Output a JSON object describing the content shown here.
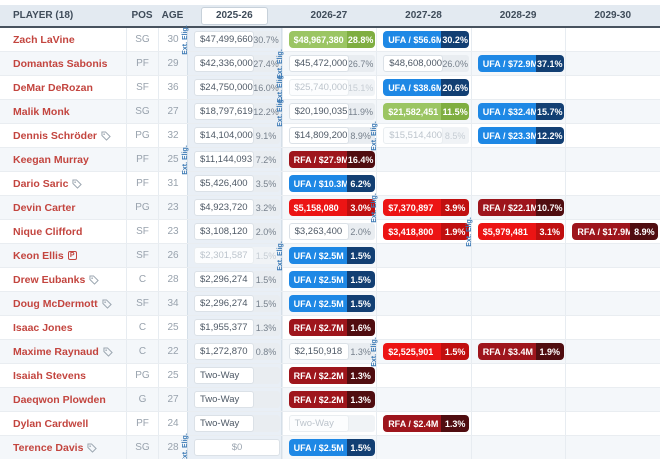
{
  "table": {
    "columns": [
      "PLAYER (18)",
      "POS",
      "AGE",
      "2025-26",
      "2026-27",
      "2027-28",
      "2028-29",
      "2029-30"
    ],
    "ext_elig_label": "Ext. Elig.",
    "rows": [
      {
        "player": "Zach LaVine",
        "pos": "SG",
        "age": "30",
        "icon": null,
        "cells": [
          {
            "type": "plain",
            "label": "$47,499,660",
            "pct": "30.7%",
            "ext": true
          },
          {
            "type": "green",
            "label": "$48,967,380",
            "pct": "28.8%"
          },
          {
            "type": "blue",
            "label": "UFA / $56.6M",
            "pct": "30.2%"
          },
          null,
          null
        ]
      },
      {
        "player": "Domantas Sabonis",
        "pos": "PF",
        "age": "29",
        "icon": null,
        "cells": [
          {
            "type": "plain",
            "label": "$42,336,000",
            "pct": "27.4%"
          },
          {
            "type": "plain",
            "label": "$45,472,000",
            "pct": "26.7%",
            "ext": true
          },
          {
            "type": "plain",
            "label": "$48,608,000",
            "pct": "26.0%"
          },
          {
            "type": "blue",
            "label": "UFA / $72.9M",
            "pct": "37.1%"
          },
          null
        ]
      },
      {
        "player": "DeMar DeRozan",
        "pos": "SF",
        "age": "36",
        "icon": null,
        "cells": [
          {
            "type": "plain",
            "label": "$24,750,000",
            "pct": "16.0%"
          },
          {
            "type": "muted",
            "label": "$25,740,000",
            "pct": "15.1%",
            "ext": true
          },
          {
            "type": "blue",
            "label": "UFA / $38.6M",
            "pct": "20.6%"
          },
          null,
          null
        ]
      },
      {
        "player": "Malik Monk",
        "pos": "SG",
        "age": "27",
        "icon": null,
        "cells": [
          {
            "type": "plain",
            "label": "$18,797,619",
            "pct": "12.2%"
          },
          {
            "type": "plain",
            "label": "$20,190,035",
            "pct": "11.9%",
            "ext": true
          },
          {
            "type": "green",
            "label": "$21,582,451",
            "pct": "11.5%"
          },
          {
            "type": "blue",
            "label": "UFA / $32.4M",
            "pct": "15.7%"
          },
          null
        ]
      },
      {
        "player": "Dennis Schröder",
        "pos": "PG",
        "age": "32",
        "icon": "tag-icon",
        "cells": [
          {
            "type": "plain",
            "label": "$14,104,000",
            "pct": "9.1%"
          },
          {
            "type": "plain",
            "label": "$14,809,200",
            "pct": "8.9%"
          },
          {
            "type": "muted",
            "label": "$15,514,400",
            "pct": "8.5%",
            "ext": true
          },
          {
            "type": "blue",
            "label": "UFA / $23.3M",
            "pct": "12.2%"
          },
          null
        ]
      },
      {
        "player": "Keegan Murray",
        "pos": "PF",
        "age": "25",
        "icon": null,
        "cells": [
          {
            "type": "plain",
            "label": "$11,144,093",
            "pct": "7.2%",
            "ext": true
          },
          {
            "type": "darkred",
            "label": "RFA / $27.9M",
            "pct": "16.4%"
          },
          null,
          null,
          null
        ]
      },
      {
        "player": "Dario Saric",
        "pos": "PF",
        "age": "31",
        "icon": "tag-icon",
        "cells": [
          {
            "type": "plain",
            "label": "$5,426,400",
            "pct": "3.5%"
          },
          {
            "type": "blue",
            "label": "UFA / $10.3M",
            "pct": "6.2%"
          },
          null,
          null,
          null
        ]
      },
      {
        "player": "Devin Carter",
        "pos": "PG",
        "age": "23",
        "icon": null,
        "cells": [
          {
            "type": "plain",
            "label": "$4,923,720",
            "pct": "3.2%"
          },
          {
            "type": "red",
            "label": "$5,158,080",
            "pct": "3.0%"
          },
          {
            "type": "red",
            "label": "$7,370,897",
            "pct": "3.9%",
            "ext": true
          },
          {
            "type": "darkred",
            "label": "RFA / $22.1M",
            "pct": "10.7%"
          },
          null
        ]
      },
      {
        "player": "Nique Clifford",
        "pos": "SF",
        "age": "23",
        "icon": null,
        "cells": [
          {
            "type": "plain",
            "label": "$3,108,120",
            "pct": "2.0%"
          },
          {
            "type": "plain",
            "label": "$3,263,400",
            "pct": "2.0%"
          },
          {
            "type": "red",
            "label": "$3,418,800",
            "pct": "1.9%"
          },
          {
            "type": "red",
            "label": "$5,979,481",
            "pct": "3.1%",
            "ext": true
          },
          {
            "type": "darkred",
            "label": "RFA / $17.9M",
            "pct": "8.9%"
          }
        ]
      },
      {
        "player": "Keon Ellis",
        "pos": "SF",
        "age": "26",
        "icon": "p-icon",
        "cells": [
          {
            "type": "muted",
            "label": "$2,301,587",
            "pct": "1.5%"
          },
          {
            "type": "blue",
            "label": "UFA / $2.5M",
            "pct": "1.5%",
            "ext": true
          },
          null,
          null,
          null
        ]
      },
      {
        "player": "Drew Eubanks",
        "pos": "C",
        "age": "28",
        "icon": "tag-icon",
        "cells": [
          {
            "type": "plain",
            "label": "$2,296,274",
            "pct": "1.5%"
          },
          {
            "type": "blue",
            "label": "UFA / $2.5M",
            "pct": "1.5%"
          },
          null,
          null,
          null
        ]
      },
      {
        "player": "Doug McDermott",
        "pos": "SF",
        "age": "34",
        "icon": "tag-icon",
        "cells": [
          {
            "type": "plain",
            "label": "$2,296,274",
            "pct": "1.5%"
          },
          {
            "type": "blue",
            "label": "UFA / $2.5M",
            "pct": "1.5%"
          },
          null,
          null,
          null
        ]
      },
      {
        "player": "Isaac Jones",
        "pos": "C",
        "age": "25",
        "icon": null,
        "cells": [
          {
            "type": "plain",
            "label": "$1,955,377",
            "pct": "1.3%"
          },
          {
            "type": "darkred",
            "label": "RFA / $2.7M",
            "pct": "1.6%"
          },
          null,
          null,
          null
        ]
      },
      {
        "player": "Maxime Raynaud",
        "pos": "C",
        "age": "22",
        "icon": "tag-icon",
        "cells": [
          {
            "type": "plain",
            "label": "$1,272,870",
            "pct": "0.8%"
          },
          {
            "type": "plain",
            "label": "$2,150,918",
            "pct": "1.3%"
          },
          {
            "type": "red",
            "label": "$2,525,901",
            "pct": "1.5%",
            "ext": true
          },
          {
            "type": "darkred",
            "label": "RFA / $3.4M",
            "pct": "1.9%"
          },
          null
        ]
      },
      {
        "player": "Isaiah Stevens",
        "pos": "PG",
        "age": "25",
        "icon": null,
        "cells": [
          {
            "type": "twoway",
            "label": "Two-Way",
            "pct": ""
          },
          {
            "type": "darkred",
            "label": "RFA / $2.2M",
            "pct": "1.3%"
          },
          null,
          null,
          null
        ]
      },
      {
        "player": "Daeqwon Plowden",
        "pos": "G",
        "age": "27",
        "icon": null,
        "cells": [
          {
            "type": "twoway",
            "label": "Two-Way",
            "pct": ""
          },
          {
            "type": "darkred",
            "label": "RFA / $2.2M",
            "pct": "1.3%"
          },
          null,
          null,
          null
        ]
      },
      {
        "player": "Dylan Cardwell",
        "pos": "PF",
        "age": "24",
        "icon": null,
        "cells": [
          {
            "type": "twoway",
            "label": "Two-Way",
            "pct": ""
          },
          {
            "type": "twoway_muted",
            "label": "Two-Way",
            "pct": ""
          },
          {
            "type": "darkred",
            "label": "RFA / $2.4M",
            "pct": "1.3%"
          },
          null,
          null
        ]
      },
      {
        "player": "Terence Davis",
        "pos": "SG",
        "age": "28",
        "icon": "tag-icon",
        "cells": [
          {
            "type": "zero",
            "label": "$0",
            "ext": true
          },
          {
            "type": "blue",
            "label": "UFA / $2.5M",
            "pct": "1.5%"
          },
          null,
          null,
          null
        ]
      }
    ]
  },
  "icons": {
    "p_label": "P",
    "tag": "tag-icon"
  },
  "colors": {
    "player_name": "#c3453f",
    "highlight_column": "#e9eff6",
    "header_underline": "#47525e",
    "badge_green": "#9bc563",
    "badge_blue": "#1e88e5",
    "badge_red": "#ec1414",
    "badge_darkred": "#9e151c",
    "ext_label": "#3c7ab5"
  }
}
